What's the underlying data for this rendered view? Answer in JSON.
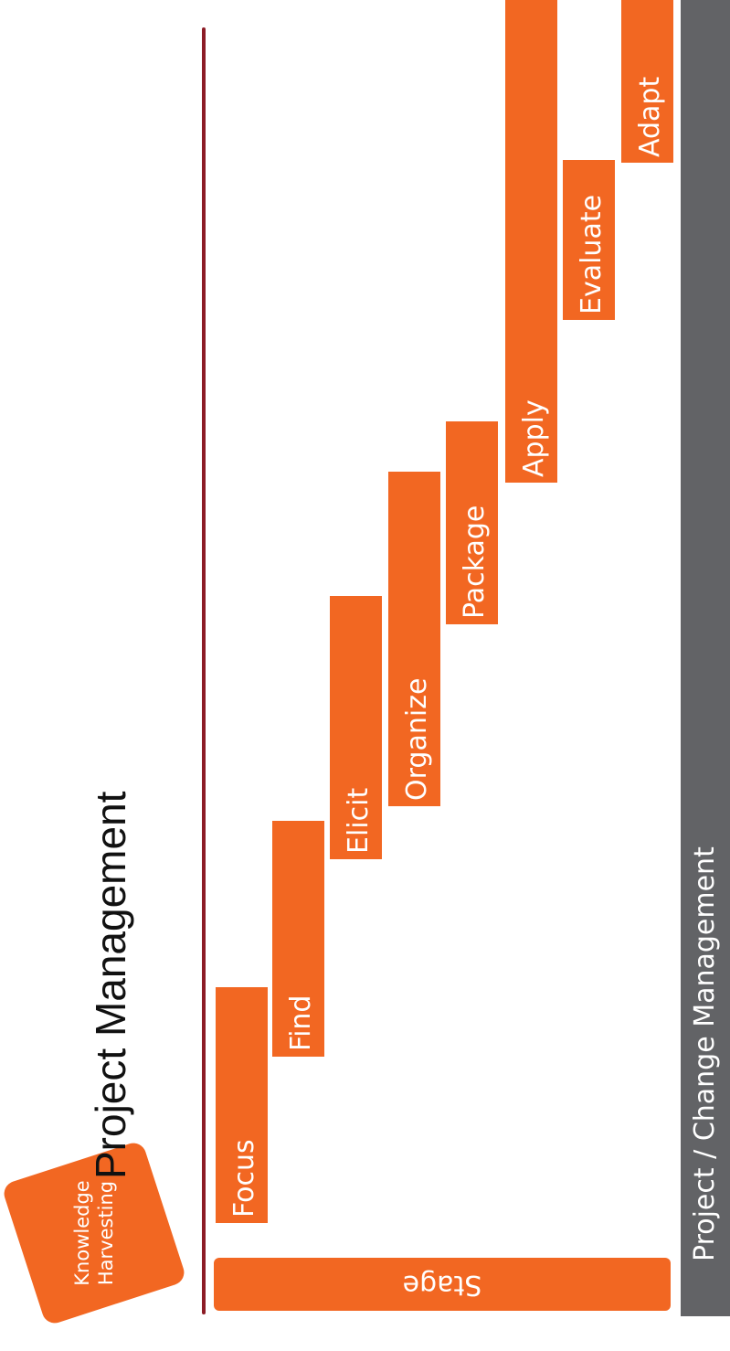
{
  "logo": {
    "line1": "Knowledge",
    "line2": "Harvesting"
  },
  "title": "Project Management",
  "stage_label": "Stage",
  "steps": [
    {
      "label": "Focus"
    },
    {
      "label": "Find"
    },
    {
      "label": "Elicit"
    },
    {
      "label": "Organize"
    },
    {
      "label": "Package"
    },
    {
      "label": "Apply"
    },
    {
      "label": "Evaluate"
    },
    {
      "label": "Adapt"
    }
  ],
  "footer_bar": "Project / Change Management",
  "colors": {
    "accent": "#f26722",
    "divider": "#8c1c26",
    "bar": "#626366"
  }
}
